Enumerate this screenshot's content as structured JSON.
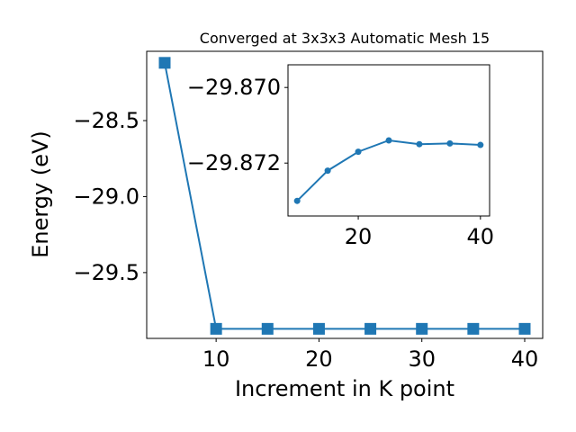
{
  "chart_data": [
    {
      "type": "line",
      "title": "Converged at 3x3x3 Automatic Mesh 15",
      "xlabel": "Increment in K point",
      "ylabel": "Energy (eV)",
      "x": [
        5,
        10,
        15,
        20,
        25,
        30,
        35,
        40
      ],
      "series": [
        {
          "values": [
            -28.12,
            -29.87,
            -29.87,
            -29.87,
            -29.87,
            -29.87,
            -29.87,
            -29.87
          ],
          "color": "#1f77b4",
          "marker": "square"
        }
      ],
      "xlim": [
        3.25,
        41.75
      ],
      "ylim": [
        -29.933,
        -28.044
      ],
      "xticks": [
        10,
        20,
        30,
        40
      ],
      "yticks": [
        -28.5,
        -29.0,
        -29.5
      ],
      "ytick_labels": [
        "−28.5",
        "−29.0",
        "−29.5"
      ],
      "grid": false,
      "legend": "none"
    },
    {
      "type": "line",
      "inset": true,
      "x": [
        10,
        15,
        20,
        25,
        30,
        35,
        40
      ],
      "series": [
        {
          "values": [
            -29.873,
            -29.8722,
            -29.8717,
            -29.8714,
            -29.8715,
            -29.87148,
            -29.87152
          ],
          "color": "#1f77b4",
          "marker": "circle"
        }
      ],
      "xlim": [
        8.5,
        41.5
      ],
      "ylim": [
        -29.8734,
        -29.8694
      ],
      "xticks": [
        20,
        40
      ],
      "yticks": [
        -29.872,
        -29.87
      ],
      "ytick_labels": [
        "−29.872",
        "−29.870"
      ],
      "grid": false,
      "legend": "none"
    }
  ]
}
